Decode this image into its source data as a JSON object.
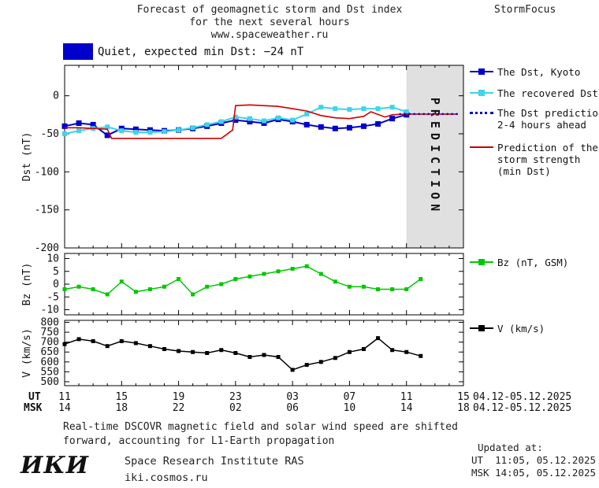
{
  "header": {
    "title_line1": "Forecast of geomagnetic storm and Dst index",
    "title_line2": "for the next several hours",
    "title_line3": "www.spaceweather.ru",
    "brand": "StormFocus"
  },
  "status": {
    "text": "Quiet, expected min Dst: −24 nT",
    "box_color": "#0000cc"
  },
  "legend": {
    "dst_kyoto": {
      "label": "The Dst, Kyoto",
      "color": "#0000cc"
    },
    "recovered": {
      "label": "The recovered Dst",
      "color": "#3fd4e6"
    },
    "prediction_24": {
      "label_line1": "The Dst prediction",
      "label_line2": "2-4 hours ahead",
      "color": "#0000cc"
    },
    "storm_strength": {
      "label_line1": "Prediction of the",
      "label_line2": "storm strength",
      "label_line3": "(min Dst)",
      "color": "#cc0000"
    },
    "bz": {
      "label": "Bz (nT, GSM)",
      "color": "#00c800"
    },
    "v": {
      "label": "V (km/s)",
      "color": "#000000"
    }
  },
  "xaxis": {
    "tick_hours": [
      0,
      4,
      8,
      12,
      16,
      20,
      24,
      28
    ],
    "ut_label": "UT",
    "msk_label": "MSK",
    "ut_ticks": [
      "11",
      "15",
      "19",
      "23",
      "03",
      "07",
      "11",
      "15"
    ],
    "msk_ticks": [
      "14",
      "18",
      "22",
      "02",
      "06",
      "10",
      "14",
      "18"
    ],
    "ut_date": "04.12-05.12.2025",
    "msk_date": "04.12-05.12.2025"
  },
  "chart_data": [
    {
      "type": "line",
      "name": "dst",
      "ylabel": "Dst (nT)",
      "ylim": [
        -200,
        40
      ],
      "yticks": [
        0,
        -50,
        -100,
        -150,
        -200
      ],
      "xlim": [
        0,
        28
      ],
      "prediction_band": {
        "start": 24,
        "end": 28,
        "label": "PREDICTION",
        "color": "#e0e0e0",
        "text_color": "#b2b2b2"
      },
      "series": [
        {
          "key": "dst_kyoto",
          "name": "The Dst, Kyoto",
          "color": "#0000cc",
          "marker": true,
          "marker_size": 7,
          "width": 2,
          "x": [
            0,
            1,
            2,
            3,
            4,
            5,
            6,
            7,
            8,
            9,
            10,
            11,
            12,
            13,
            14,
            15,
            16,
            17,
            18,
            19,
            20,
            21,
            22,
            23,
            24
          ],
          "values": [
            -40,
            -36,
            -38,
            -52,
            -43,
            -44,
            -45,
            -46,
            -45,
            -43,
            -40,
            -36,
            -32,
            -34,
            -36,
            -31,
            -34,
            -38,
            -41,
            -43,
            -42,
            -40,
            -37,
            -30,
            -25
          ]
        },
        {
          "key": "recovered_dst",
          "name": "The recovered Dst",
          "color": "#3fd4e6",
          "marker": true,
          "marker_size": 6,
          "width": 2,
          "x": [
            0,
            1,
            2,
            3,
            4,
            5,
            6,
            7,
            8,
            9,
            10,
            11,
            12,
            13,
            14,
            15,
            16,
            17,
            18,
            19,
            20,
            21,
            22,
            23,
            24
          ],
          "values": [
            -50,
            -46,
            -43,
            -41,
            -46,
            -48,
            -48,
            -47,
            -45,
            -42,
            -38,
            -34,
            -28,
            -30,
            -33,
            -29,
            -32,
            -24,
            -15,
            -17,
            -18,
            -17,
            -17,
            -15,
            -21
          ]
        },
        {
          "key": "storm_prediction",
          "name": "Prediction of the storm strength (min Dst)",
          "color": "#cc0000",
          "width": 1.6,
          "x": [
            0,
            1,
            2,
            3,
            3.3,
            11,
            11.8,
            12,
            13,
            14,
            15,
            16,
            17,
            18,
            19,
            20,
            21,
            21.5,
            22.5,
            23,
            24,
            27.6
          ],
          "values": [
            -42,
            -42,
            -43,
            -44,
            -56,
            -56,
            -45,
            -13,
            -12,
            -13,
            -14,
            -17,
            -20,
            -26,
            -29,
            -30,
            -27,
            -21,
            -28,
            -25,
            -24,
            -24
          ]
        },
        {
          "key": "dst_prediction",
          "name": "The Dst prediction 2-4 hours ahead",
          "color": "#0000cc",
          "width": 2.5,
          "dash": "2,4",
          "x": [
            23.5,
            27.6
          ],
          "values": [
            -24,
            -24
          ]
        }
      ]
    },
    {
      "type": "line",
      "name": "bz",
      "ylabel": "Bz (nT)",
      "ylim": [
        -12,
        12
      ],
      "yticks": [
        10,
        5,
        0,
        -5,
        -10
      ],
      "xlim": [
        0,
        28
      ],
      "series": [
        {
          "key": "bz",
          "name": "Bz (nT, GSM)",
          "color": "#00c800",
          "marker": true,
          "marker_size": 5,
          "width": 1.5,
          "x": [
            0,
            1,
            2,
            3,
            4,
            5,
            6,
            7,
            8,
            9,
            10,
            11,
            12,
            13,
            14,
            15,
            16,
            17,
            18,
            19,
            20,
            21,
            22,
            23,
            24,
            25
          ],
          "values": [
            -2,
            -1,
            -2,
            -4,
            1,
            -3,
            -2,
            -1,
            2,
            -4,
            -1,
            0,
            2,
            3,
            4,
            5,
            6,
            7,
            4,
            1,
            -1,
            -1,
            -2,
            -2,
            -2,
            2
          ]
        }
      ]
    },
    {
      "type": "line",
      "name": "v",
      "ylabel": "V (km/s)",
      "ylim": [
        480,
        810
      ],
      "yticks": [
        800,
        750,
        700,
        650,
        600,
        550,
        500
      ],
      "xlim": [
        0,
        28
      ],
      "series": [
        {
          "key": "v",
          "name": "V (km/s)",
          "color": "#000000",
          "marker": true,
          "marker_size": 5,
          "width": 1.5,
          "x": [
            0,
            1,
            2,
            3,
            4,
            5,
            6,
            7,
            8,
            9,
            10,
            11,
            12,
            13,
            14,
            15,
            16,
            17,
            18,
            19,
            20,
            21,
            22,
            23,
            24,
            25
          ],
          "values": [
            690,
            715,
            705,
            680,
            705,
            695,
            680,
            665,
            655,
            650,
            645,
            660,
            645,
            625,
            635,
            625,
            560,
            585,
            600,
            620,
            650,
            665,
            720,
            660,
            650,
            630
          ]
        }
      ]
    }
  ],
  "footer": {
    "note_line1": "Real-time DSCOVR magnetic field and solar wind speed are shifted",
    "note_line2": "forward, accounting for L1-Earth propagation",
    "logo": "ИКИ",
    "institute": "Space Research Institute RAS",
    "site": "iki.cosmos.ru",
    "updated_label": "Updated at:",
    "updated_ut": "UT  11:05, 05.12.2025",
    "updated_msk": "MSK 14:05, 05.12.2025"
  }
}
